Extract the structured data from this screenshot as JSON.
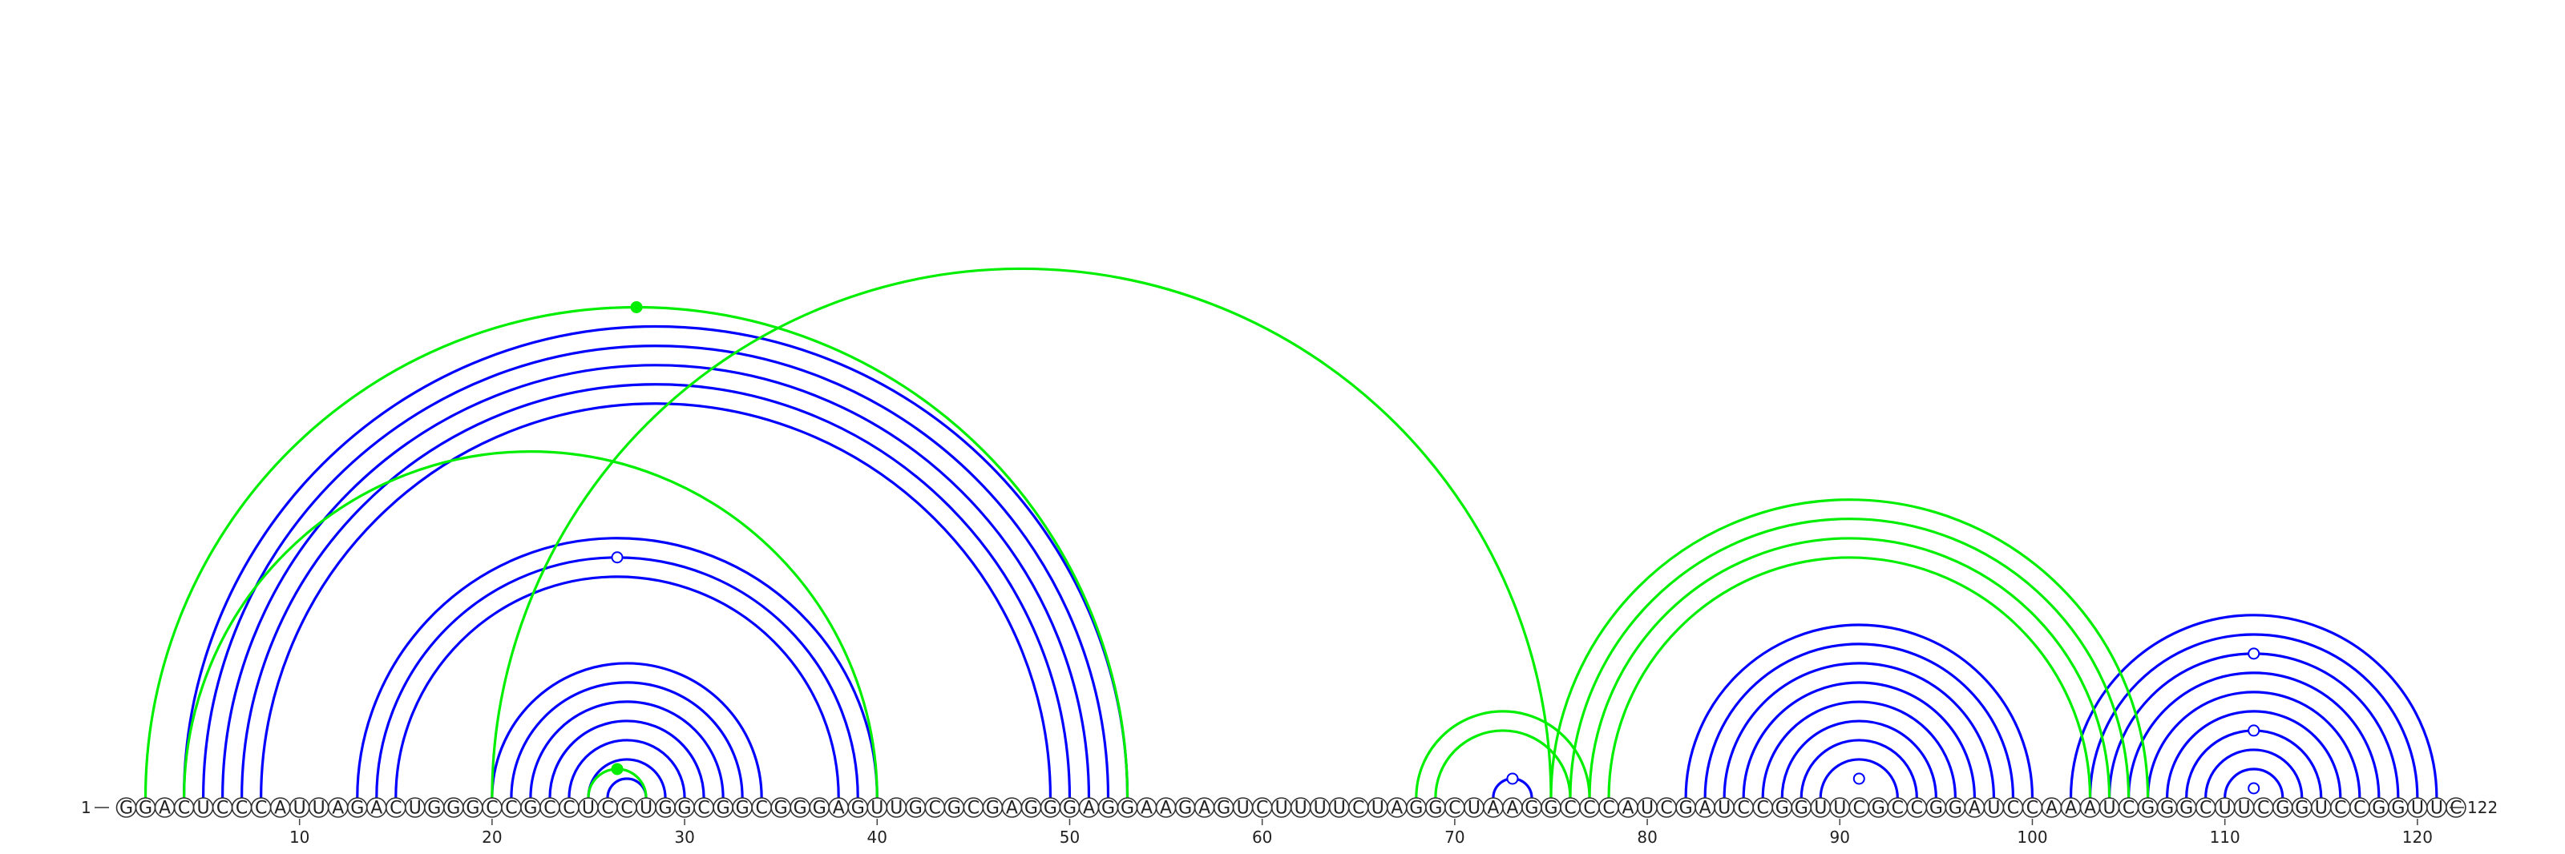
{
  "diagram": {
    "sequence": "GGACUCCCAUUAGACUGGGCCGCCUCCUGGCGGCGGGAGUUGCGCGAGGGAGGAAGAGUCUUUUCUAGGCUAAGGCCCAUCGAUCCGGUUCGCCGGAUCCAAAUCGGGCUUCGGUCCGGUUC",
    "start_label": "1",
    "end_label": "122",
    "tick_labels": [
      "10",
      "20",
      "30",
      "40",
      "50",
      "60",
      "70",
      "80",
      "90",
      "100",
      "110",
      "120"
    ],
    "colors": {
      "primary_arc": "#0000ff",
      "secondary_arc": "#00ee00",
      "backbone": "#333333"
    },
    "blue_helices": [
      {
        "start": 4,
        "end": 53,
        "count": 5
      },
      {
        "start": 13,
        "end": 40,
        "count": 3
      },
      {
        "start": 20,
        "end": 34,
        "count": 7
      },
      {
        "start": 72,
        "end": 74,
        "count": 1
      },
      {
        "start": 82,
        "end": 100,
        "count": 8
      },
      {
        "start": 102,
        "end": 121,
        "count": 9
      }
    ],
    "green_helices": [
      {
        "start": 2,
        "end": 53,
        "count": 1,
        "mark": "filled"
      },
      {
        "start": 4,
        "end": 40,
        "count": 1
      },
      {
        "start": 25,
        "end": 28,
        "count": 1,
        "mark": "filled"
      },
      {
        "start": 20,
        "end": 75,
        "count": 1
      },
      {
        "start": 68,
        "end": 77,
        "count": 1
      },
      {
        "start": 69,
        "end": 76,
        "count": 1
      },
      {
        "start": 75,
        "end": 106,
        "count": 4
      }
    ],
    "open_marks": [
      {
        "start": 14,
        "end": 39
      },
      {
        "start": 72,
        "end": 74
      },
      {
        "start": 90,
        "end": 92
      },
      {
        "start": 111,
        "end": 112
      },
      {
        "start": 108,
        "end": 115
      },
      {
        "start": 104,
        "end": 119
      }
    ]
  }
}
